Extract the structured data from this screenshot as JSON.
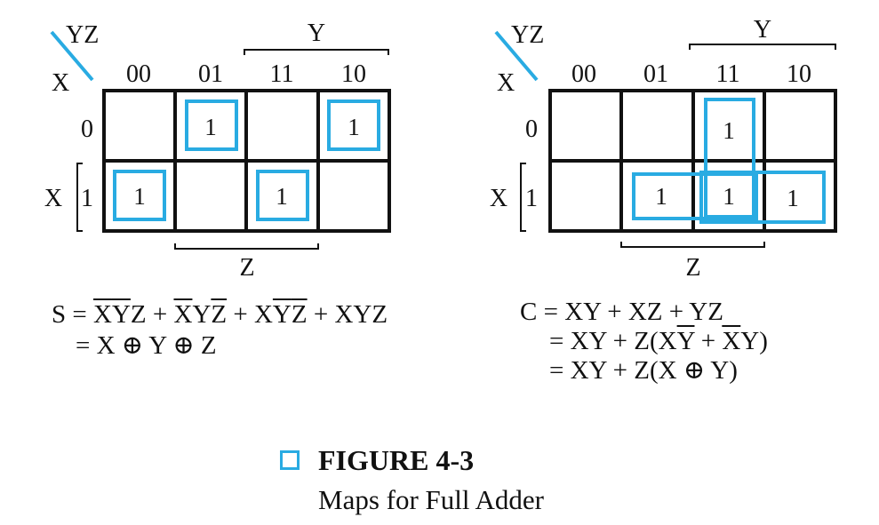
{
  "colors": {
    "accent": "#29abe2",
    "ink": "#111111"
  },
  "maps": [
    {
      "id": "sum",
      "corner_row_var": "X",
      "corner_col_var": "YZ",
      "col_headers": [
        "00",
        "01",
        "11",
        "10"
      ],
      "row_headers": [
        "0",
        "1"
      ],
      "col_group_label": "Y",
      "row_group_label": "X",
      "bottom_group_label": "Z",
      "cells": [
        [
          "",
          "1",
          "",
          "1"
        ],
        [
          "1",
          "",
          "1",
          ""
        ]
      ]
    },
    {
      "id": "carry",
      "corner_row_var": "X",
      "corner_col_var": "YZ",
      "col_headers": [
        "00",
        "01",
        "11",
        "10"
      ],
      "row_headers": [
        "0",
        "1"
      ],
      "col_group_label": "Y",
      "row_group_label": "X",
      "bottom_group_label": "Z",
      "cells": [
        [
          "",
          "",
          "1",
          ""
        ],
        [
          "",
          "1",
          "1",
          "1"
        ]
      ]
    }
  ],
  "equations": {
    "sum": {
      "lhs": "S",
      "line1_terms": [
        "X̄ȲZ",
        "X̄YZ̄",
        "XȲZ̄",
        "XYZ"
      ],
      "line2": "= X ⊕ Y ⊕ Z"
    },
    "carry": {
      "line1": "C = XY + XZ + YZ",
      "line2": "= XY + Z(XȲ + X̄Y)",
      "line3": "= XY + Z(X ⊕ Y)"
    }
  },
  "caption": {
    "title": "FIGURE 4-3",
    "subtitle": "Maps for Full Adder"
  }
}
